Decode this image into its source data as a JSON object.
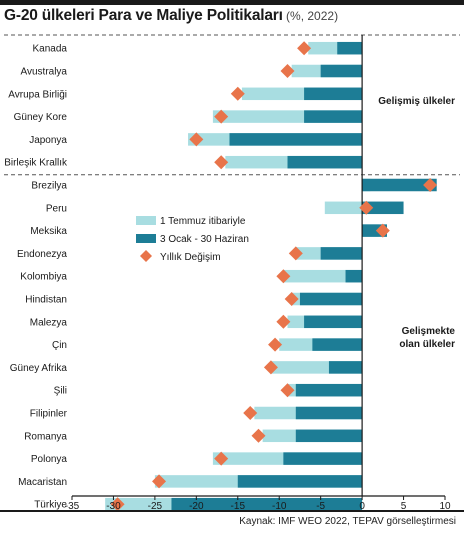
{
  "title": {
    "main": "G-20 ülkeleri Para ve Maliye Politikaları",
    "sub": " (%, 2022)"
  },
  "source": "Kaynak: IMF WEO 2022, TEPAV görselleştirmesi",
  "group_labels": {
    "advanced": [
      "Gelişmiş ülkeler"
    ],
    "emerging": [
      "Gelişmekte",
      "olan ülkeler"
    ]
  },
  "colors": {
    "series1": "#a8dde1",
    "series2": "#1d7d96",
    "marker": "#e8744a",
    "axis": "#1a1a1a",
    "divider": "#555555"
  },
  "chart_data": {
    "type": "bar",
    "orientation": "horizontal",
    "categories": [
      "Kanada",
      "Avustralya",
      "Avrupa Birliği",
      "Güney Kore",
      "Japonya",
      "Birleşik Krallık",
      "Brezilya",
      "Peru",
      "Meksika",
      "Endonezya",
      "Kolombiya",
      "Hindistan",
      "Malezya",
      "Çin",
      "Güney Afrika",
      "Şili",
      "Filipinler",
      "Romanya",
      "Polonya",
      "Macaristan",
      "Türkiye"
    ],
    "series": [
      {
        "name": "1 Temmuz itibariyle",
        "kind": "bar",
        "values": [
          -6.5,
          -8.5,
          -14.5,
          -18,
          -21,
          -16.5,
          1,
          -4.5,
          2,
          -8,
          -9.5,
          -8.5,
          -9,
          -10,
          -11,
          -9,
          -13,
          -12,
          -18,
          -25,
          -31
        ]
      },
      {
        "name": "3 Ocak - 30 Haziran",
        "kind": "bar",
        "values": [
          -3,
          -5,
          -7,
          -7,
          -16,
          -9,
          9,
          5,
          3,
          -5,
          -2,
          -7.5,
          -7,
          -6,
          -4,
          -8,
          -8,
          -8,
          -9.5,
          -15,
          -23
        ]
      },
      {
        "name": "Yıllık Değişim",
        "kind": "marker",
        "values": [
          -7,
          -9,
          -15,
          -17,
          -20,
          -17,
          8.2,
          0.5,
          2.5,
          -8,
          -9.5,
          -8.5,
          -9.5,
          -10.5,
          -11,
          -9,
          -13.5,
          -12.5,
          -17,
          -24.5,
          -29.5
        ]
      }
    ],
    "groups": [
      {
        "name": "Gelişmiş ülkeler",
        "start": 0,
        "end": 5
      },
      {
        "name": "Gelişmekte olan ülkeler",
        "start": 6,
        "end": 20
      }
    ],
    "xlim": [
      -35,
      10
    ],
    "xticks": [
      -35,
      -30,
      -25,
      -20,
      -15,
      -10,
      -5,
      0,
      5,
      10
    ],
    "legend_position": "middle-left",
    "grid": false
  }
}
